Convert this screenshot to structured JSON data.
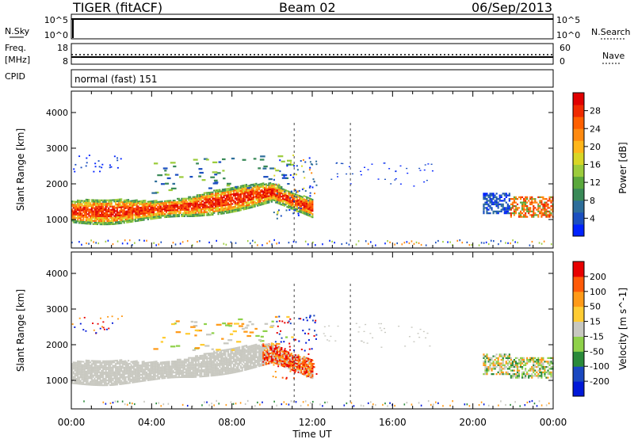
{
  "header": {
    "left": "TIGER (fitACF)",
    "center": "Beam 02",
    "right": "06/Sep/2013"
  },
  "top_panels": {
    "nsky_label": "N.Sky",
    "nsearch_label": "N.Search",
    "freq_label": "Freq.",
    "freq_unit": "[MHz]",
    "nave_label": "Nave",
    "cpid_label": "CPID",
    "cpid_text": "normal (fast) 151",
    "nsky_ticks": [
      "10^5",
      "10^0"
    ],
    "nsearch_ticks": [
      "10^5",
      "10^0"
    ],
    "freq_ticks": [
      "18",
      "8"
    ],
    "nave_ticks": [
      "60",
      "0"
    ]
  },
  "colorbars": {
    "power": {
      "label": "Power [dB]",
      "ticks": [
        "28",
        "24",
        "20",
        "16",
        "12",
        "8",
        "4"
      ],
      "colors": [
        "#0022ff",
        "#1b4fc0",
        "#2e6e9a",
        "#3a8a58",
        "#5aa83c",
        "#9ccc3c",
        "#d8d626",
        "#ffb61a",
        "#ff8a10",
        "#ff6000",
        "#f02a00",
        "#e00000"
      ]
    },
    "velocity": {
      "label": "Velocity [m s^-1]",
      "ticks": [
        "200",
        "100",
        "50",
        "15",
        "-15",
        "-50",
        "-100",
        "-200"
      ],
      "colors": [
        "#0018d8",
        "#1a48c0",
        "#2a8a3a",
        "#8fd14a",
        "#c8c8c0",
        "#ffcc33",
        "#ff9a18",
        "#ff5a08",
        "#e80000"
      ]
    }
  },
  "chart_data": [
    {
      "type": "heatmap",
      "panel": "power",
      "ylabel": "Slant Range [km]",
      "xlabel": "",
      "ylim": [
        200,
        4600
      ],
      "yticks": [
        1000,
        2000,
        3000,
        4000
      ],
      "xlim": [
        0,
        24
      ],
      "series": [
        {
          "name": "main echo band",
          "x_hours": [
            0,
            2,
            4,
            6,
            8,
            9,
            10,
            11,
            12
          ],
          "range_center_km": [
            1200,
            1200,
            1250,
            1350,
            1550,
            1650,
            1750,
            1500,
            1300
          ]
        },
        {
          "name": "late echo band",
          "x_hours": [
            21.5,
            22.5,
            23.5
          ],
          "range_center_km": [
            1300,
            1350,
            1300
          ]
        }
      ]
    },
    {
      "type": "heatmap",
      "panel": "velocity",
      "ylabel": "Slant Range [km]",
      "xlabel": "Time UT",
      "ylim": [
        200,
        4600
      ],
      "yticks": [
        1000,
        2000,
        3000,
        4000
      ],
      "xlim": [
        0,
        24
      ],
      "xtick_labels": [
        "00:00",
        "04:00",
        "08:00",
        "12:00",
        "16:00",
        "20:00",
        "00:00"
      ]
    }
  ]
}
